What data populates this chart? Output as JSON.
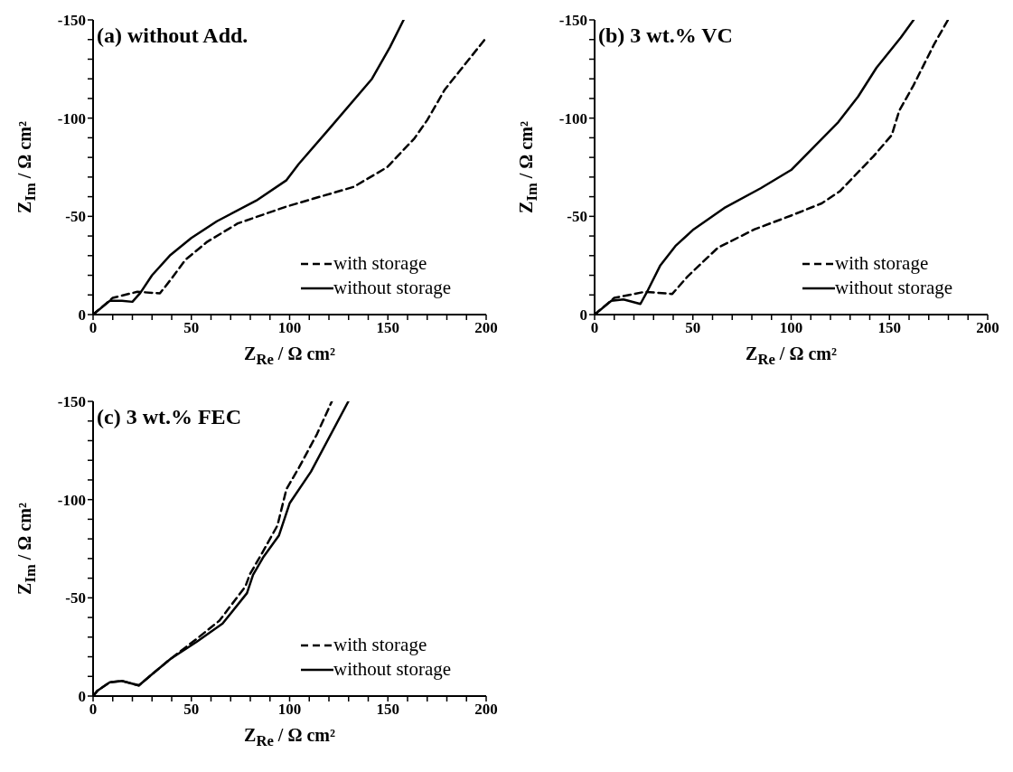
{
  "chart_data": [
    {
      "type": "line",
      "title": "(a) without Add.",
      "xlabel": "Z$_{Re}$ / Ω cm²",
      "ylabel": "Z$_{Im}$ / Ω cm²",
      "xlim": [
        0,
        200
      ],
      "ylim": [
        0,
        -150
      ],
      "xticks": [
        0,
        {
          "value": 10,
          "label": null
        },
        {
          "value": 20,
          "label": null
        },
        {
          "value": 30,
          "label": null
        },
        {
          "value": 40,
          "label": null
        },
        50,
        {
          "value": 60,
          "label": null
        },
        {
          "value": 70,
          "label": null
        },
        {
          "value": 80,
          "label": null
        },
        {
          "value": 90,
          "label": null
        },
        100,
        {
          "value": 110,
          "label": null
        },
        {
          "value": 120,
          "label": null
        },
        {
          "value": 130,
          "label": null
        },
        {
          "value": 140,
          "label": null
        },
        150,
        {
          "value": 160,
          "label": null
        },
        {
          "value": 170,
          "label": null
        },
        {
          "value": 180,
          "label": null
        },
        {
          "value": 190,
          "label": null
        },
        200
      ],
      "yticks": [
        0,
        {
          "value": -10,
          "label": null
        },
        {
          "value": -20,
          "label": null
        },
        {
          "value": -30,
          "label": null
        },
        {
          "value": -40,
          "label": null
        },
        -50,
        {
          "value": -60,
          "label": null
        },
        {
          "value": -70,
          "label": null
        },
        {
          "value": -80,
          "label": null
        },
        {
          "value": -90,
          "label": null
        },
        -100,
        {
          "value": -110,
          "label": null
        },
        {
          "value": -120,
          "label": null
        },
        {
          "value": -130,
          "label": null
        },
        {
          "value": -140,
          "label": null
        },
        -150
      ],
      "legend": "bottom right",
      "series": [
        {
          "name": "with storage",
          "color": "#000000",
          "line_style": "dashed",
          "x": [
            0,
            10,
            22.5,
            34,
            39.5,
            47,
            58,
            73.6,
            98.4,
            132.6,
            149.6,
            163.6,
            170,
            179,
            200
          ],
          "values": [
            0,
            -8.5,
            -11.6,
            -10.8,
            -17.8,
            -27.9,
            -37,
            -46.4,
            -55,
            -65,
            -75,
            -89.8,
            -99,
            -114.6,
            -140.9
          ]
        },
        {
          "name": "without storage",
          "color": "#000000",
          "line_style": "solid",
          "x": [
            0,
            8.5,
            14.7,
            20,
            24,
            30,
            39,
            50,
            63,
            83,
            98.4,
            104.6,
            120,
            141.9,
            151,
            158
          ],
          "values": [
            0,
            -7,
            -7,
            -6.5,
            -11,
            -20,
            -30,
            -39,
            -47.5,
            -58,
            -68.4,
            -76.6,
            -94.4,
            -120,
            -136,
            -150
          ]
        }
      ]
    },
    {
      "type": "line",
      "title": "(b) 3 wt.% VC",
      "xlabel": "Z$_{Re}$ / Ω cm²",
      "ylabel": "Z$_{Im}$ / Ω cm²",
      "xlim": [
        0,
        200
      ],
      "ylim": [
        0,
        -150
      ],
      "xticks": [
        0,
        {
          "value": 10,
          "label": null
        },
        {
          "value": 20,
          "label": null
        },
        {
          "value": 30,
          "label": null
        },
        {
          "value": 40,
          "label": null
        },
        50,
        {
          "value": 60,
          "label": null
        },
        {
          "value": 70,
          "label": null
        },
        {
          "value": 80,
          "label": null
        },
        {
          "value": 90,
          "label": null
        },
        100,
        {
          "value": 110,
          "label": null
        },
        {
          "value": 120,
          "label": null
        },
        {
          "value": 130,
          "label": null
        },
        {
          "value": 140,
          "label": null
        },
        150,
        {
          "value": 160,
          "label": null
        },
        {
          "value": 170,
          "label": null
        },
        {
          "value": 180,
          "label": null
        },
        {
          "value": 190,
          "label": null
        },
        200
      ],
      "yticks": [
        0,
        {
          "value": -10,
          "label": null
        },
        {
          "value": -20,
          "label": null
        },
        {
          "value": -30,
          "label": null
        },
        {
          "value": -40,
          "label": null
        },
        -50,
        {
          "value": -60,
          "label": null
        },
        {
          "value": -70,
          "label": null
        },
        {
          "value": -80,
          "label": null
        },
        {
          "value": -90,
          "label": null
        },
        -100,
        {
          "value": -110,
          "label": null
        },
        {
          "value": -120,
          "label": null
        },
        {
          "value": -130,
          "label": null
        },
        {
          "value": -140,
          "label": null
        },
        -150
      ],
      "legend": "bottom right",
      "series": [
        {
          "name": "with storage",
          "color": "#000000",
          "line_style": "dashed",
          "x": [
            0,
            10,
            25.6,
            39.5,
            47.3,
            62.8,
            81.4,
            100,
            115.5,
            124.8,
            141.9,
            151.2,
            155,
            162,
            172.9,
            179.8
          ],
          "values": [
            0,
            -8.5,
            -11.6,
            -10.5,
            -19.4,
            -34.1,
            -43.4,
            -50.4,
            -56.6,
            -62.8,
            -80.6,
            -91.4,
            -103.8,
            -116.2,
            -137.9,
            -150
          ]
        },
        {
          "name": "without storage",
          "color": "#000000",
          "line_style": "solid",
          "x": [
            0,
            8.5,
            14.7,
            23.3,
            27.1,
            33.3,
            41.1,
            50.4,
            65.9,
            84.5,
            100,
            124,
            134.1,
            143.4,
            155.8,
            162.3
          ],
          "values": [
            0,
            -7,
            -7.7,
            -5.4,
            -12.4,
            -24.8,
            -34.9,
            -43.4,
            -54.2,
            -64.3,
            -73.6,
            -98,
            -111,
            -125.6,
            -141,
            -150
          ]
        }
      ]
    },
    {
      "type": "line",
      "title": "(c) 3 wt.% FEC",
      "xlabel": "Z$_{Re}$ / Ω cm²",
      "ylabel": "Z$_{Im}$ / Ω cm²",
      "xlim": [
        0,
        200
      ],
      "ylim": [
        0,
        -150
      ],
      "xticks": [
        0,
        {
          "value": 10,
          "label": null
        },
        {
          "value": 20,
          "label": null
        },
        {
          "value": 30,
          "label": null
        },
        {
          "value": 40,
          "label": null
        },
        50,
        {
          "value": 60,
          "label": null
        },
        {
          "value": 70,
          "label": null
        },
        {
          "value": 80,
          "label": null
        },
        {
          "value": 90,
          "label": null
        },
        100,
        {
          "value": 110,
          "label": null
        },
        {
          "value": 120,
          "label": null
        },
        {
          "value": 130,
          "label": null
        },
        {
          "value": 140,
          "label": null
        },
        150,
        {
          "value": 160,
          "label": null
        },
        {
          "value": 170,
          "label": null
        },
        {
          "value": 180,
          "label": null
        },
        {
          "value": 190,
          "label": null
        },
        200
      ],
      "yticks": [
        0,
        {
          "value": -10,
          "label": null
        },
        {
          "value": -20,
          "label": null
        },
        {
          "value": -30,
          "label": null
        },
        {
          "value": -40,
          "label": null
        },
        -50,
        {
          "value": -60,
          "label": null
        },
        {
          "value": -70,
          "label": null
        },
        {
          "value": -80,
          "label": null
        },
        {
          "value": -90,
          "label": null
        },
        -100,
        {
          "value": -110,
          "label": null
        },
        {
          "value": -120,
          "label": null
        },
        {
          "value": -130,
          "label": null
        },
        {
          "value": -140,
          "label": null
        },
        -150
      ],
      "legend": "bottom right",
      "series": [
        {
          "name": "with storage",
          "color": "#000000",
          "line_style": "dashed",
          "x": [
            0,
            2.3,
            8.5,
            14.7,
            23.3,
            30.2,
            39.5,
            52.7,
            64.3,
            77.5,
            79.8,
            86,
            93.8,
            98.4,
            104.7,
            113.9,
            121.5
          ],
          "values": [
            0,
            -2.8,
            -7,
            -7.7,
            -5.4,
            -11.3,
            -19,
            -29.1,
            -38.4,
            -55.8,
            -62,
            -72.8,
            -86.8,
            -105.4,
            -116.2,
            -133.3,
            -150
          ]
        },
        {
          "name": "without storage",
          "color": "#000000",
          "line_style": "solid",
          "x": [
            0,
            2.3,
            8.5,
            14.7,
            23.3,
            30.2,
            39.5,
            52.7,
            65.9,
            78.3,
            81.4,
            86.8,
            94.6,
            100,
            110.9,
            129.9
          ],
          "values": [
            0,
            -2.8,
            -7,
            -7.7,
            -5.4,
            -11.3,
            -19,
            -27.6,
            -36.9,
            -52.4,
            -61.7,
            -71,
            -81.8,
            -98.1,
            -114.3,
            -150
          ]
        }
      ]
    }
  ]
}
